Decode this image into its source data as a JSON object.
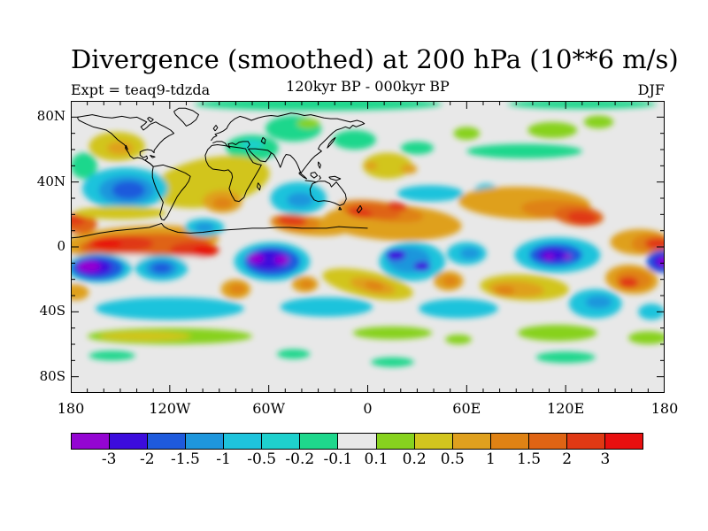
{
  "title": "Divergence (smoothed) at 200 hPa (10**6 m/s)",
  "subtitle_left": "Expt = teaq9-tdzda",
  "subtitle_center": "120kyr BP - 000kyr BP",
  "subtitle_right": "DJF",
  "chart_data": {
    "type": "heatmap",
    "title": "Divergence (smoothed) at 200 hPa (10**6 m/s)",
    "experiment": "teaq9-tdzda",
    "period": "120kyr BP - 000kyr BP",
    "season": "DJF",
    "units": "10**6 m/s",
    "projection": "global equirectangular, lon -180..180, lat -90..90",
    "grid": "off",
    "x_axis": {
      "ticks": [
        {
          "lon": -180,
          "label": "180"
        },
        {
          "lon": -120,
          "label": "120W"
        },
        {
          "lon": -60,
          "label": "60W"
        },
        {
          "lon": 0,
          "label": "0"
        },
        {
          "lon": 60,
          "label": "60E"
        },
        {
          "lon": 120,
          "label": "120E"
        },
        {
          "lon": 180,
          "label": "180"
        }
      ],
      "minor_tick_step_deg": 10
    },
    "y_axis": {
      "ticks": [
        {
          "lat": 80,
          "label": "80N"
        },
        {
          "lat": 40,
          "label": "40N"
        },
        {
          "lat": 0,
          "label": "0"
        },
        {
          "lat": -40,
          "label": "40S"
        },
        {
          "lat": -80,
          "label": "80S"
        }
      ],
      "minor_tick_step_deg": 10
    },
    "colorbar": {
      "boundary_labels": [
        "-3",
        "-2",
        "-1.5",
        "-1",
        "-0.5",
        "-0.2",
        "-0.1",
        "0.1",
        "0.2",
        "0.5",
        "1",
        "1.5",
        "2",
        "3"
      ],
      "colors": [
        "#9405D2",
        "#3C0CDC",
        "#1E5ADC",
        "#1E96DC",
        "#1EC3DC",
        "#1ED0CD",
        "#1ED78C",
        "#E8E8E8",
        "#87D21E",
        "#D2C51E",
        "#DFA01E",
        "#DF8214",
        "#DF6414",
        "#E03914",
        "#E80F0F"
      ],
      "background_level_color": "#E8E8E8"
    },
    "field_blobs_comment": "approximate anomaly features: [lon, lat, rx_deg, ry_deg, color_index, rotation_deg]",
    "field_blobs": [
      [
        -30,
        88,
        75,
        4,
        6,
        0
      ],
      [
        130,
        88,
        45,
        3,
        6,
        0
      ],
      [
        -45,
        73,
        17,
        8,
        6,
        0
      ],
      [
        -8,
        66,
        13,
        6,
        6,
        0
      ],
      [
        -70,
        61,
        16,
        8,
        6,
        0
      ],
      [
        -70,
        63,
        7,
        3,
        5,
        0
      ],
      [
        95,
        59,
        35,
        4.5,
        6,
        0
      ],
      [
        30,
        61,
        10,
        4,
        6,
        0
      ],
      [
        -172,
        50,
        8,
        8,
        6,
        0
      ],
      [
        -36,
        76,
        7,
        3,
        8,
        0
      ],
      [
        112,
        72,
        15,
        5,
        8,
        0
      ],
      [
        140,
        77,
        9,
        4,
        8,
        0
      ],
      [
        60,
        70,
        8,
        4,
        8,
        0
      ],
      [
        -152,
        62,
        17,
        9,
        9,
        0
      ],
      [
        -150,
        61,
        8,
        4,
        10,
        0
      ],
      [
        -95,
        40,
        36,
        15,
        9,
        -10
      ],
      [
        -88,
        28,
        12,
        7,
        10,
        0
      ],
      [
        -88,
        27,
        6,
        3.5,
        11,
        0
      ],
      [
        -147,
        36,
        26,
        13,
        4,
        0
      ],
      [
        -146,
        35,
        17,
        9,
        3,
        0
      ],
      [
        -145,
        35,
        10,
        5.5,
        2,
        0
      ],
      [
        -42,
        30,
        17,
        10,
        4,
        0
      ],
      [
        -41,
        29,
        8,
        4.5,
        3,
        0
      ],
      [
        12,
        50,
        15,
        8,
        9,
        0
      ],
      [
        25,
        48,
        5,
        3,
        10,
        0
      ],
      [
        2,
        50,
        4,
        2.5,
        10,
        0
      ],
      [
        38,
        33,
        20,
        5,
        4,
        0
      ],
      [
        72,
        33,
        8,
        6,
        4,
        0
      ],
      [
        15,
        15,
        42,
        11,
        10,
        3
      ],
      [
        8,
        22,
        26,
        6,
        11,
        8
      ],
      [
        5,
        22,
        15,
        4.5,
        12,
        8
      ],
      [
        -5,
        21,
        8,
        3,
        13,
        10
      ],
      [
        18,
        25,
        6,
        2.5,
        13,
        10
      ],
      [
        -35,
        13,
        24,
        6,
        10,
        5
      ],
      [
        -44,
        15,
        15,
        5,
        11,
        5
      ],
      [
        -46,
        16,
        9,
        3,
        13,
        5
      ],
      [
        95,
        27,
        40,
        10,
        10,
        2
      ],
      [
        115,
        23,
        22,
        6,
        11,
        3
      ],
      [
        128,
        19,
        15,
        6,
        12,
        5
      ],
      [
        130,
        18,
        9,
        4,
        13,
        5
      ],
      [
        165,
        3,
        18,
        8,
        10,
        0
      ],
      [
        172,
        2,
        12,
        6,
        11,
        0
      ],
      [
        176,
        2,
        8,
        3.5,
        13,
        0
      ],
      [
        -138,
        3,
        48,
        10,
        10,
        -3
      ],
      [
        -135,
        1,
        40,
        7,
        12,
        -2
      ],
      [
        -150,
        2,
        20,
        5,
        13,
        0
      ],
      [
        -105,
        -2,
        15,
        5,
        13,
        0
      ],
      [
        -158,
        2,
        9,
        2.5,
        14,
        0
      ],
      [
        -99,
        -2,
        7,
        2.5,
        14,
        0
      ],
      [
        -174,
        14,
        10,
        6,
        12,
        0
      ],
      [
        -177,
        17,
        6,
        3.5,
        13,
        0
      ],
      [
        -150,
        21,
        28,
        4,
        9,
        0
      ],
      [
        -150,
        -7,
        30,
        2.5,
        7,
        0
      ],
      [
        -115,
        -8,
        18,
        2.5,
        7,
        0
      ],
      [
        -99,
        12,
        12,
        5.5,
        4,
        0
      ],
      [
        -99,
        12,
        6,
        3,
        3,
        0
      ],
      [
        -163,
        -13,
        20,
        9,
        4,
        0
      ],
      [
        -164,
        -13,
        16,
        7.5,
        2,
        0
      ],
      [
        -166,
        -12.5,
        11,
        5.5,
        1,
        0
      ],
      [
        -169,
        -12,
        7,
        3.5,
        0,
        0
      ],
      [
        -125,
        -13,
        16,
        8,
        4,
        0
      ],
      [
        -125,
        -13,
        10,
        5.5,
        3,
        0
      ],
      [
        -125,
        -13,
        6,
        3.2,
        2,
        0
      ],
      [
        -58,
        -9,
        23,
        12,
        4,
        0
      ],
      [
        -58,
        -9,
        17,
        9,
        2,
        0
      ],
      [
        -60,
        -8,
        12,
        6.5,
        1,
        0
      ],
      [
        -68,
        -7,
        5,
        3,
        0,
        0
      ],
      [
        -52,
        -8,
        4.5,
        2.8,
        0,
        0
      ],
      [
        115,
        -5,
        26,
        11,
        4,
        0
      ],
      [
        114,
        -5,
        16,
        7,
        2,
        0
      ],
      [
        112,
        -5,
        9,
        4.5,
        1,
        0
      ],
      [
        110,
        -6,
        3,
        1.7,
        0,
        0
      ],
      [
        121,
        -6,
        2.6,
        1.5,
        0,
        0
      ],
      [
        179,
        -9,
        10,
        7,
        2,
        0
      ],
      [
        179,
        -9,
        6.5,
        4.5,
        1,
        0
      ],
      [
        180,
        -9,
        3.5,
        2.5,
        0,
        0
      ],
      [
        0,
        -23,
        28,
        8,
        9,
        12
      ],
      [
        3,
        -24,
        14,
        4.5,
        10,
        12
      ],
      [
        4,
        -24,
        6,
        2.5,
        11,
        12
      ],
      [
        -38,
        -23,
        8,
        5,
        10,
        0
      ],
      [
        -37,
        -23,
        4,
        2.5,
        11,
        0
      ],
      [
        -80,
        -26,
        9,
        6,
        10,
        0
      ],
      [
        -79,
        -26,
        5,
        3,
        11,
        0
      ],
      [
        -177,
        -28,
        8,
        5,
        10,
        0
      ],
      [
        27,
        -9,
        20,
        12,
        4,
        0
      ],
      [
        25,
        -8,
        13,
        8,
        3,
        0
      ],
      [
        17,
        -5,
        6,
        3.5,
        1,
        0
      ],
      [
        33,
        -12,
        5,
        3,
        1,
        0
      ],
      [
        49,
        -21,
        9,
        6,
        10,
        0
      ],
      [
        50,
        -21,
        4.5,
        3,
        11,
        0
      ],
      [
        60,
        -4,
        12,
        7,
        4,
        0
      ],
      [
        62,
        -4,
        6,
        3.5,
        3,
        0
      ],
      [
        95,
        -25,
        27,
        8,
        9,
        3
      ],
      [
        90,
        -26,
        17,
        5,
        10,
        3
      ],
      [
        83,
        -27,
        6,
        3,
        11,
        0
      ],
      [
        160,
        -20,
        16,
        9,
        10,
        5
      ],
      [
        161,
        -20,
        11,
        6,
        11,
        5
      ],
      [
        158,
        -22,
        6,
        3.5,
        13,
        0
      ],
      [
        138,
        -35,
        16,
        9,
        4,
        0
      ],
      [
        140,
        -34,
        8,
        4,
        3,
        0
      ],
      [
        172,
        -40,
        8,
        5,
        4,
        0
      ],
      [
        -120,
        -38,
        45,
        7,
        4,
        0
      ],
      [
        -25,
        -37,
        28,
        6,
        4,
        0
      ],
      [
        55,
        -38,
        24,
        6,
        4,
        0
      ],
      [
        -120,
        -55,
        50,
        5,
        8,
        0
      ],
      [
        -135,
        -55,
        28,
        3,
        9,
        0
      ],
      [
        15,
        -53,
        24,
        4,
        8,
        0
      ],
      [
        115,
        -53,
        24,
        5,
        8,
        0
      ],
      [
        170,
        -56,
        12,
        4,
        8,
        0
      ],
      [
        55,
        -57,
        8,
        3,
        8,
        0
      ],
      [
        -155,
        -67,
        14,
        3,
        6,
        0
      ],
      [
        -45,
        -66,
        10,
        3,
        6,
        0
      ],
      [
        15,
        -71,
        13,
        3,
        6,
        0
      ],
      [
        120,
        -68,
        18,
        3.5,
        6,
        0
      ]
    ]
  }
}
